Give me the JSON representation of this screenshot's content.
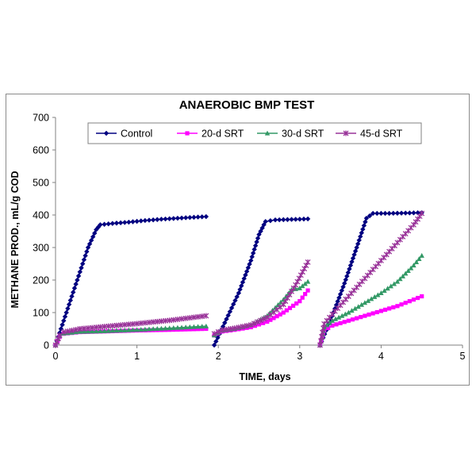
{
  "chart_data": {
    "type": "line",
    "title": "ANAEROBIC BMP TEST",
    "xlabel": "TIME, days",
    "ylabel": "METHANE PROD., mL/g COD",
    "xlim": [
      0,
      5
    ],
    "ylim": [
      0,
      700
    ],
    "xticks": [
      "0",
      "1",
      "2",
      "3",
      "4",
      "5"
    ],
    "yticks": [
      "0",
      "100",
      "200",
      "300",
      "400",
      "500",
      "600",
      "700"
    ],
    "grid": false,
    "legend": "top",
    "series": [
      {
        "name": "Control",
        "color": "#000080",
        "marker": "diamond",
        "segments": [
          [
            [
              0,
              0
            ],
            [
              0.1,
              75
            ],
            [
              0.2,
              150
            ],
            [
              0.3,
              225
            ],
            [
              0.4,
              300
            ],
            [
              0.5,
              355
            ],
            [
              0.55,
              370
            ],
            [
              0.7,
              374
            ],
            [
              0.9,
              378
            ],
            [
              1.1,
              383
            ],
            [
              1.3,
              387
            ],
            [
              1.5,
              390
            ],
            [
              1.7,
              393
            ],
            [
              1.85,
              395
            ]
          ],
          [
            [
              1.95,
              0
            ],
            [
              2.1,
              80
            ],
            [
              2.25,
              160
            ],
            [
              2.4,
              260
            ],
            [
              2.5,
              340
            ],
            [
              2.58,
              380
            ],
            [
              2.7,
              385
            ],
            [
              2.85,
              386
            ],
            [
              3.0,
              387
            ],
            [
              3.1,
              388
            ]
          ],
          [
            [
              3.25,
              0
            ],
            [
              3.4,
              90
            ],
            [
              3.55,
              190
            ],
            [
              3.7,
              300
            ],
            [
              3.82,
              390
            ],
            [
              3.9,
              405
            ],
            [
              4.1,
              405
            ],
            [
              4.3,
              406
            ],
            [
              4.5,
              407
            ]
          ]
        ]
      },
      {
        "name": "20-d SRT",
        "color": "#ff00ff",
        "marker": "square",
        "segments": [
          [
            [
              0,
              0
            ],
            [
              0.05,
              25
            ],
            [
              0.1,
              35
            ],
            [
              0.3,
              40
            ],
            [
              0.6,
              42
            ],
            [
              1.0,
              45
            ],
            [
              1.4,
              47
            ],
            [
              1.85,
              50
            ]
          ],
          [
            [
              1.95,
              30
            ],
            [
              2.05,
              42
            ],
            [
              2.2,
              47
            ],
            [
              2.4,
              55
            ],
            [
              2.6,
              72
            ],
            [
              2.8,
              100
            ],
            [
              3.0,
              135
            ],
            [
              3.1,
              168
            ]
          ],
          [
            [
              3.25,
              0
            ],
            [
              3.3,
              45
            ],
            [
              3.4,
              60
            ],
            [
              3.6,
              75
            ],
            [
              3.8,
              90
            ],
            [
              4.0,
              105
            ],
            [
              4.2,
              120
            ],
            [
              4.4,
              140
            ],
            [
              4.5,
              150
            ]
          ]
        ]
      },
      {
        "name": "30-d SRT",
        "color": "#339966",
        "marker": "triangle",
        "segments": [
          [
            [
              0,
              0
            ],
            [
              0.05,
              28
            ],
            [
              0.1,
              36
            ],
            [
              0.3,
              41
            ],
            [
              0.6,
              43
            ],
            [
              1.0,
              47
            ],
            [
              1.4,
              52
            ],
            [
              1.85,
              58
            ]
          ],
          [
            [
              1.95,
              30
            ],
            [
              2.05,
              45
            ],
            [
              2.2,
              50
            ],
            [
              2.4,
              62
            ],
            [
              2.6,
              90
            ],
            [
              2.8,
              140
            ],
            [
              2.9,
              170
            ],
            [
              3.0,
              175
            ],
            [
              3.1,
              195
            ]
          ],
          [
            [
              3.25,
              0
            ],
            [
              3.3,
              55
            ],
            [
              3.4,
              75
            ],
            [
              3.6,
              100
            ],
            [
              3.8,
              130
            ],
            [
              4.0,
              160
            ],
            [
              4.2,
              195
            ],
            [
              4.4,
              245
            ],
            [
              4.5,
              275
            ]
          ]
        ]
      },
      {
        "name": "45-d SRT",
        "color": "#993399",
        "marker": "star",
        "segments": [
          [
            [
              0,
              0
            ],
            [
              0.05,
              30
            ],
            [
              0.1,
              40
            ],
            [
              0.3,
              50
            ],
            [
              0.6,
              57
            ],
            [
              1.0,
              66
            ],
            [
              1.4,
              76
            ],
            [
              1.85,
              90
            ]
          ],
          [
            [
              1.95,
              35
            ],
            [
              2.05,
              46
            ],
            [
              2.2,
              52
            ],
            [
              2.4,
              62
            ],
            [
              2.6,
              85
            ],
            [
              2.8,
              125
            ],
            [
              2.95,
              185
            ],
            [
              3.1,
              255
            ]
          ],
          [
            [
              3.25,
              0
            ],
            [
              3.3,
              65
            ],
            [
              3.4,
              95
            ],
            [
              3.6,
              150
            ],
            [
              3.8,
              205
            ],
            [
              4.0,
              260
            ],
            [
              4.2,
              315
            ],
            [
              4.4,
              370
            ],
            [
              4.5,
              405
            ]
          ]
        ]
      }
    ]
  }
}
